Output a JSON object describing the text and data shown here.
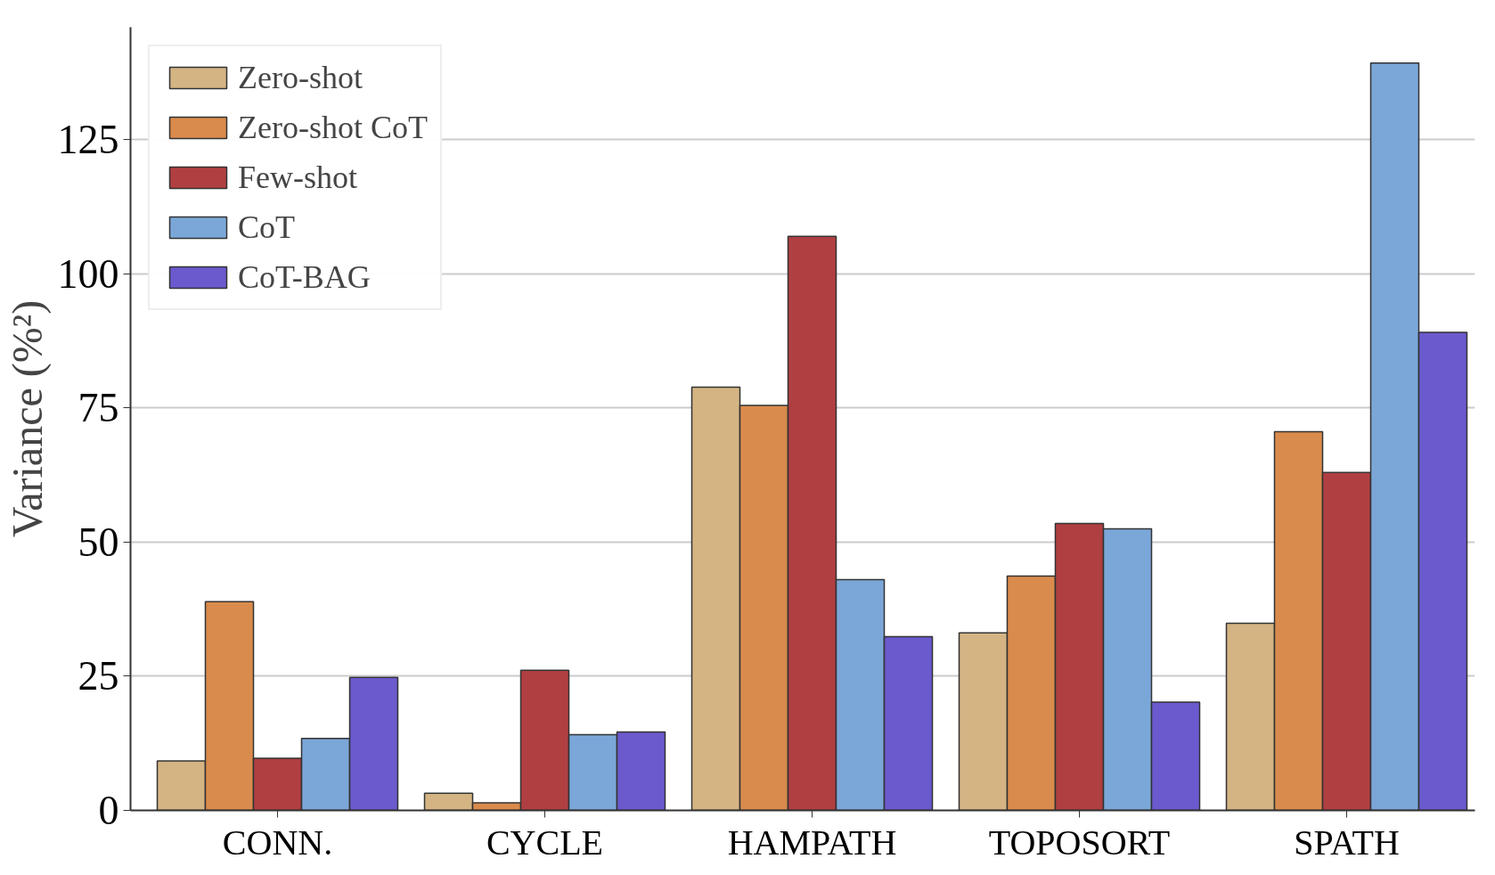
{
  "chart_data": {
    "type": "bar",
    "ylabel": "Variance (%²)",
    "categories": [
      "CONN.",
      "CYCLE",
      "HAMPATH",
      "TOPOSORT",
      "SPATH"
    ],
    "series": [
      {
        "name": "Zero-shot",
        "color": "#d4b483",
        "values": [
          9.2,
          3.2,
          78.9,
          33.1,
          34.9
        ]
      },
      {
        "name": "Zero-shot CoT",
        "color": "#d98b4d",
        "values": [
          38.9,
          1.4,
          75.5,
          43.7,
          70.6
        ]
      },
      {
        "name": "Few-shot",
        "color": "#b03f42",
        "values": [
          9.7,
          26.1,
          107.0,
          53.5,
          63.0
        ]
      },
      {
        "name": "CoT",
        "color": "#7ba7d8",
        "values": [
          13.4,
          14.1,
          43.0,
          52.5,
          139.3
        ]
      },
      {
        "name": "CoT-BAG",
        "color": "#6a5acd",
        "values": [
          24.8,
          14.6,
          32.4,
          20.2,
          89.1
        ]
      }
    ],
    "ylim": [
      0,
      146
    ],
    "yticks": [
      0,
      25,
      50,
      75,
      100,
      125
    ],
    "grid": "y",
    "legend": "top left"
  }
}
